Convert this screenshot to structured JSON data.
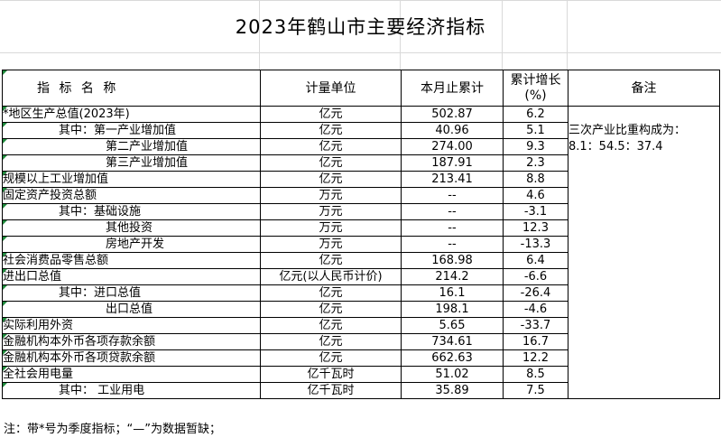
{
  "title": "2023年鹤山市主要经济指标",
  "headers": {
    "indicator": "指 标 名 称",
    "unit": "计量单位",
    "value": "本月止累计",
    "growth_line1": "累计增长",
    "growth_line2": "(%)",
    "note": "备注"
  },
  "rows": [
    {
      "name": "*地区生产总值(2023年)",
      "level": 0,
      "unit": "亿元",
      "value": "502.87",
      "growth": "6.2",
      "note": ""
    },
    {
      "name": "其中：第一产业增加值",
      "level": 1,
      "unit": "亿元",
      "value": "40.96",
      "growth": "5.1",
      "note": "三次产业比重构成为："
    },
    {
      "name": "第二产业增加值",
      "level": 2,
      "unit": "亿元",
      "value": "274.00",
      "growth": "9.3",
      "note": "8.1：54.5：37.4"
    },
    {
      "name": "第三产业增加值",
      "level": 2,
      "unit": "亿元",
      "value": "187.91",
      "growth": "2.3",
      "note": ""
    },
    {
      "name": "规模以上工业增加值",
      "level": 0,
      "unit": "亿元",
      "value": "213.41",
      "growth": "8.8",
      "note": ""
    },
    {
      "name": "固定资产投资总额",
      "level": 0,
      "unit": "万元",
      "value": "--",
      "growth": "4.6",
      "note": ""
    },
    {
      "name": "其中：基础设施",
      "level": 1,
      "unit": "万元",
      "value": "--",
      "growth": "-3.1",
      "note": ""
    },
    {
      "name": "其他投资",
      "level": 2,
      "unit": "万元",
      "value": "--",
      "growth": "12.3",
      "note": ""
    },
    {
      "name": "房地产开发",
      "level": 2,
      "unit": "万元",
      "value": "--",
      "growth": "-13.3",
      "note": ""
    },
    {
      "name": "社会消费品零售总额",
      "level": 0,
      "unit": "亿元",
      "value": "168.98",
      "growth": "6.4",
      "note": ""
    },
    {
      "name": "进出口总值",
      "level": 0,
      "unit": "亿元(以人民币计价)",
      "value": "214.2",
      "growth": "-6.6",
      "note": ""
    },
    {
      "name": "其中：进口总值",
      "level": 1,
      "unit": "亿元",
      "value": "16.1",
      "growth": "-26.4",
      "note": ""
    },
    {
      "name": "出口总值",
      "level": 2,
      "unit": "亿元",
      "value": "198.1",
      "growth": "-4.6",
      "note": ""
    },
    {
      "name": "实际利用外资",
      "level": 0,
      "unit": "亿元",
      "value": "5.65",
      "growth": "-33.7",
      "note": ""
    },
    {
      "name": "金融机构本外币各项存款余额",
      "level": 0,
      "unit": "亿元",
      "value": "734.61",
      "growth": "16.7",
      "note": ""
    },
    {
      "name": "金融机构本外币各项贷款余额",
      "level": 0,
      "unit": "亿元",
      "value": "662.63",
      "growth": "12.2",
      "note": ""
    },
    {
      "name": "全社会用电量",
      "level": 0,
      "unit": "亿千瓦时",
      "value": "51.02",
      "growth": "8.5",
      "note": ""
    },
    {
      "name": "其中：  工业用电",
      "level": 1,
      "unit": "亿千瓦时",
      "value": "35.89",
      "growth": "7.5",
      "note": ""
    }
  ],
  "footnote": "注：带*号为季度指标；“—”为数据暂缺；",
  "colors": {
    "cell_marker": "#1e8a3c",
    "gridline": "#d9d9d9",
    "border": "#000000"
  }
}
